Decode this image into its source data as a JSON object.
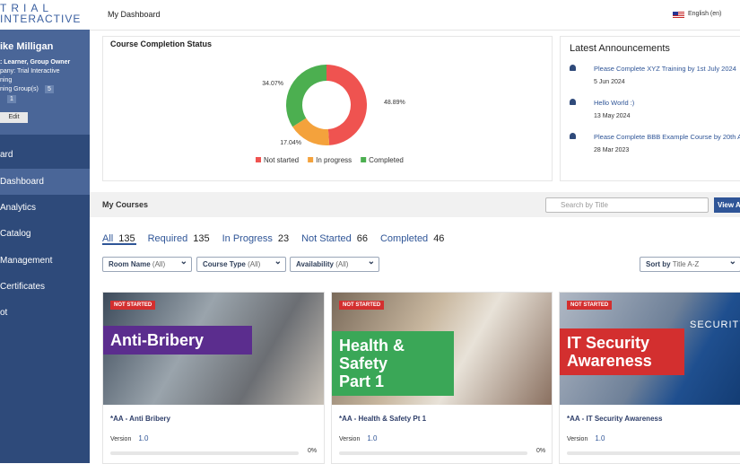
{
  "header": {
    "logo_top": "TRIAL",
    "logo_bottom": "INTERACTIVE",
    "page_title": "My Dashboard",
    "language": "English (en)"
  },
  "sidebar": {
    "name": "ike Milligan",
    "role": ": Learner, Group Owner",
    "company": "pany: Trial Interactive",
    "company2": "ning",
    "groups": "ning Group(s)",
    "group_count": "5",
    "room_count": "1",
    "edit": "Edit",
    "nav": [
      "ard",
      "Dashboard",
      "Analytics",
      "Catalog",
      "Management",
      "Certificates",
      "ot"
    ]
  },
  "chart_data": {
    "type": "pie",
    "title": "Course Completion Status",
    "categories": [
      "Not started",
      "In progress",
      "Completed"
    ],
    "values": [
      48.89,
      17.04,
      34.07
    ],
    "value_labels": [
      "48.89%",
      "17.04%",
      "34.07%"
    ],
    "colors": [
      "#ef5350",
      "#f4a23c",
      "#4caf50"
    ],
    "donut": true
  },
  "announcements": {
    "title": "Latest Announcements",
    "items": [
      {
        "text": "Please Complete XYZ Training by 1st July 2024",
        "date": "5 Jun 2024"
      },
      {
        "text": "Hello World :)",
        "date": "13 May 2024"
      },
      {
        "text": "Please Complete BBB Example Course by 20th A",
        "date": "28 Mar 2023"
      }
    ]
  },
  "courses": {
    "title": "My Courses",
    "search": "Search by Title",
    "view": "View A",
    "tabs": [
      {
        "label": "All",
        "count": "135"
      },
      {
        "label": "Required",
        "count": "135"
      },
      {
        "label": "In Progress",
        "count": "23"
      },
      {
        "label": "Not Started",
        "count": "66"
      },
      {
        "label": "Completed",
        "count": "46"
      }
    ],
    "filters": [
      {
        "name": "Room Name",
        "value": "(All)"
      },
      {
        "name": "Course Type",
        "value": "(All)"
      },
      {
        "name": "Availability",
        "value": "(All)"
      }
    ],
    "sort_label": "Sort by",
    "sort_value": "Title A-Z",
    "cards": [
      {
        "badge": "NOT STARTED",
        "banner": [
          "Anti-Bribery"
        ],
        "title": "*AA - Anti Bribery",
        "version_label": "Version",
        "version": "1.0",
        "progress": "0%"
      },
      {
        "badge": "NOT STARTED",
        "banner": [
          "Health & Safety",
          "Part 1"
        ],
        "title": "*AA - Health & Safety Pt 1",
        "version_label": "Version",
        "version": "1.0",
        "progress": "0%"
      },
      {
        "badge": "NOT STARTED",
        "banner": [
          "IT Security",
          "Awareness"
        ],
        "extra": "SECURITY",
        "title": "*AA - IT Security Awareness",
        "version_label": "Version",
        "version": "1.0",
        "progress": ""
      }
    ]
  }
}
